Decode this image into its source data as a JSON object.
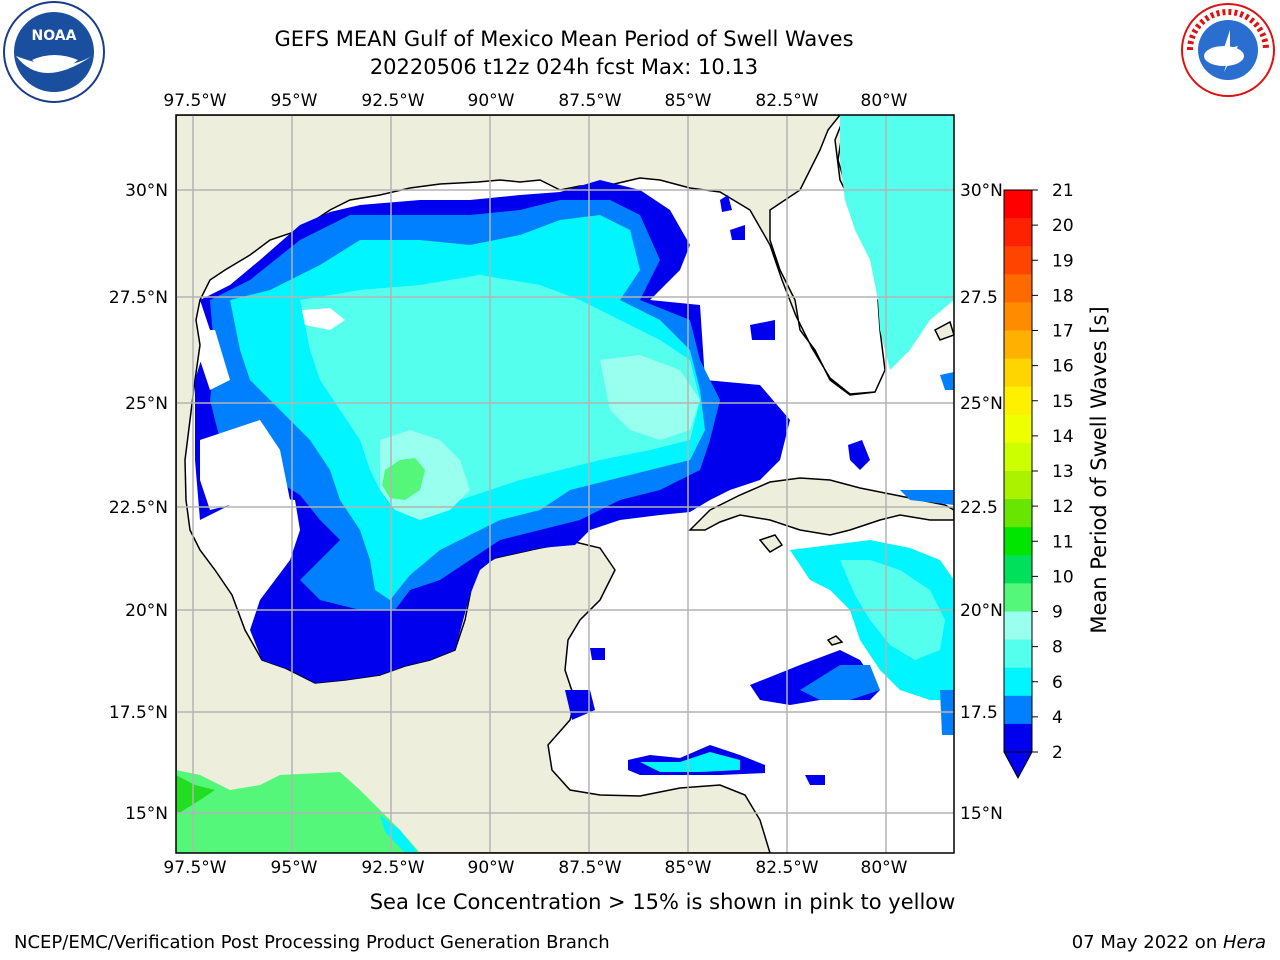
{
  "header": {
    "title_line1": "GEFS MEAN Gulf of Mexico Mean Period of Swell Waves",
    "title_line2": "20220506 t12z 024h fcst   Max: 10.13"
  },
  "logos": {
    "left": "noaa-logo",
    "left_text": "NOAA",
    "right": "nws-logo",
    "right_text": "NATIONAL WEATHER SERVICE"
  },
  "map": {
    "lon_labels": [
      "97.5°W",
      "95°W",
      "92.5°W",
      "90°W",
      "87.5°W",
      "85°W",
      "82.5°W",
      "80°W"
    ],
    "lat_labels_left": [
      "30°N",
      "27.5°N",
      "25°N",
      "22.5°N",
      "20°N",
      "17.5°N",
      "15°N"
    ],
    "lat_labels_right": [
      "30°N",
      "27.5",
      "25°N",
      "22.5",
      "20°N",
      "17.5",
      "15°N"
    ],
    "land_color": "#eeeedc",
    "ocean_nodata_color": "#ffffff",
    "grid_color": "#b4b4b4"
  },
  "colorbar": {
    "title": "Mean Period of Swell Waves [s]",
    "labels": [
      "21",
      "20",
      "19",
      "18",
      "17",
      "16",
      "15",
      "14",
      "13",
      "12",
      "11",
      "10",
      "9",
      "8",
      "6",
      "4",
      "2"
    ],
    "colors": [
      "#ff0000",
      "#ff2200",
      "#ff4400",
      "#ff6a00",
      "#ff8c00",
      "#ffb000",
      "#ffd500",
      "#fff000",
      "#eeff00",
      "#ccff00",
      "#aaf200",
      "#66e600",
      "#00e600",
      "#00e05a",
      "#55f77a",
      "#99ffee",
      "#55ffee",
      "#00f5ff",
      "#0080ff",
      "#0000ee"
    ],
    "extend_color": "#0000ee"
  },
  "footer": {
    "note": "Sea Ice Concentration > 15% is shown in pink to yellow",
    "left": "NCEP/EMC/Verification Post Processing Product Generation Branch",
    "right_date": "07 May 2022 on ",
    "right_host": "Hera"
  }
}
